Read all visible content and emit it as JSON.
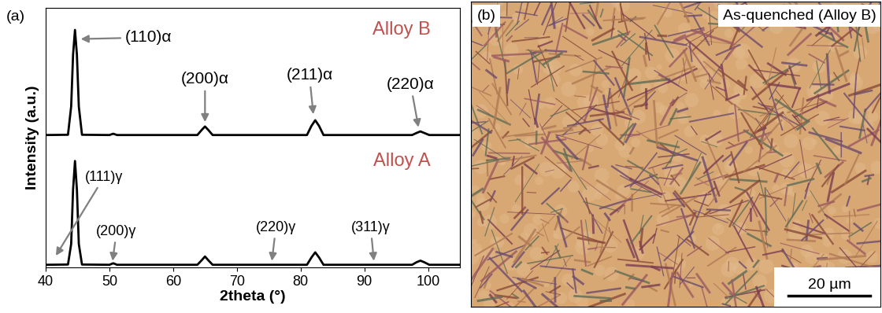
{
  "chart_data": {
    "type": "line",
    "panel_label": "(a)",
    "xlabel": "2theta (°)",
    "ylabel": "Intensity (a.u.)",
    "xlim": [
      40,
      105
    ],
    "xticks": [
      40,
      50,
      60,
      70,
      80,
      90,
      100
    ],
    "ylim": [
      0,
      100
    ],
    "yticks": [],
    "tick_labels": "x",
    "series": [
      {
        "name": "Alloy B",
        "color": "#000000",
        "x": [
          40,
          43.5,
          44.0,
          44.3,
          44.6,
          44.9,
          45.2,
          45.7,
          50.0,
          50.6,
          51.2,
          63.8,
          64.5,
          65.0,
          65.5,
          66.2,
          81.0,
          81.7,
          82.3,
          82.9,
          83.6,
          97.5,
          98.2,
          98.8,
          99.4,
          100.2,
          105
        ],
        "values": [
          51,
          51.1,
          62,
          82,
          91.5,
          82,
          62,
          51.1,
          51,
          51.5,
          51,
          51,
          53,
          54.3,
          53,
          51,
          51,
          54.5,
          56.7,
          54.5,
          51,
          51,
          51.8,
          52.4,
          51.8,
          51,
          51
        ]
      },
      {
        "name": "Alloy A",
        "color": "#000000",
        "x": [
          40,
          43.5,
          44.0,
          44.3,
          44.6,
          44.9,
          45.2,
          45.7,
          50.0,
          50.6,
          51.2,
          63.8,
          64.5,
          65.0,
          65.5,
          66.2,
          81.0,
          81.7,
          82.3,
          82.9,
          83.6,
          97.5,
          98.2,
          98.8,
          99.4,
          100.2,
          105
        ],
        "values": [
          1.0,
          1.1,
          9,
          30,
          41,
          30,
          9,
          1.1,
          1.0,
          1.6,
          1.0,
          1.0,
          2.8,
          4.2,
          2.8,
          1.0,
          1.0,
          3.8,
          5.8,
          3.8,
          1.0,
          1.0,
          2.0,
          2.6,
          2.0,
          1.0,
          1.0
        ]
      }
    ],
    "annotations": [
      {
        "text": "(110)α",
        "x": 45.5,
        "y": 88
      },
      {
        "text": "(200)α",
        "x": 65.0,
        "y": 56
      },
      {
        "text": "(211)α",
        "x": 82.0,
        "y": 59
      },
      {
        "text": "(220)α",
        "x": 98.5,
        "y": 54
      },
      {
        "text": "(111)γ",
        "x": 41.6,
        "y": 4.5
      },
      {
        "text": "(200)γ",
        "x": 50.5,
        "y": 2.5
      },
      {
        "text": "(220)γ",
        "x": 75.5,
        "y": 2.5
      },
      {
        "text": "(311)γ",
        "x": 91.5,
        "y": 2.5
      }
    ]
  },
  "micrograph": {
    "panel_label": "(b)",
    "caption": "As-quenched (Alloy B)",
    "scale_bar": "20 µm"
  }
}
